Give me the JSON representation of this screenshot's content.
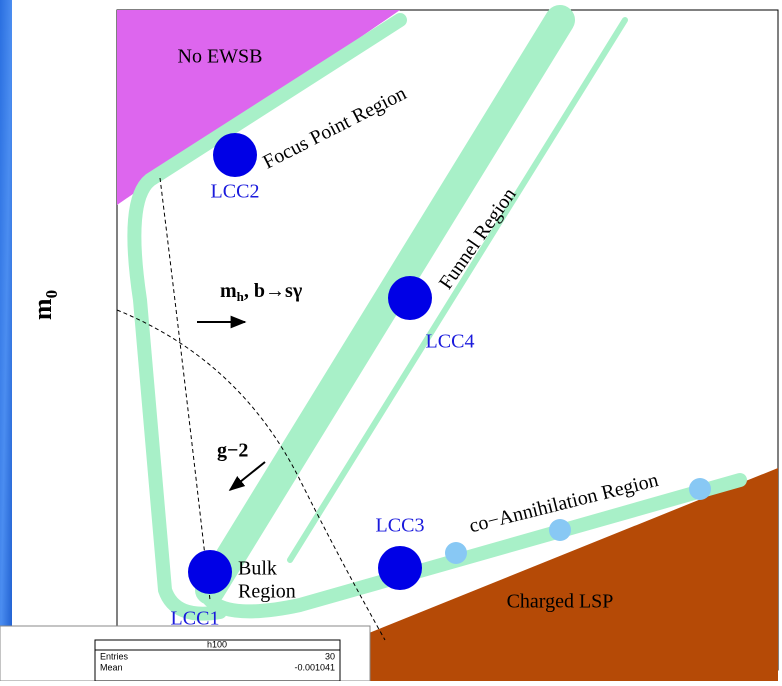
{
  "axis_label": {
    "main": "m",
    "sub": "0"
  },
  "regions": {
    "no_ewsb": "No EWSB",
    "focus_point": "Focus Point Region",
    "funnel": "Funnel Region",
    "coannihilation": "co−Annihilation Region",
    "bulk": [
      "Bulk",
      "Region"
    ],
    "charged_lsp": "Charged LSP"
  },
  "points": {
    "lcc1": "LCC1",
    "lcc2": "LCC2",
    "lcc3": "LCC3",
    "lcc4": "LCC4"
  },
  "constraints": {
    "mh_main": "m",
    "mh_sub": "h",
    "bsg": ", b→sγ",
    "g2": "g−2"
  },
  "stats_box": {
    "title": "h100",
    "rows": [
      [
        "Entries",
        "30"
      ],
      [
        "Mean",
        "-0.001041"
      ]
    ]
  }
}
